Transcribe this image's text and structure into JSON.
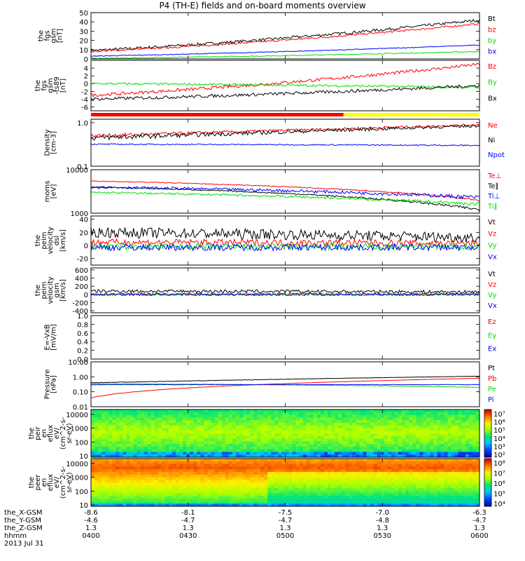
{
  "title": "P4 (TH-E) fields and on-board moments overview",
  "colors": {
    "black": "#000000",
    "red": "#ff0000",
    "green": "#00e000",
    "blue": "#0000ff",
    "yellow": "#ffff00"
  },
  "chart_data": [
    {
      "type": "line",
      "id": "p1",
      "ylabel": [
        "the",
        "fgs",
        "gsm",
        "[nT]"
      ],
      "yticks": [
        "0",
        "10",
        "20",
        "30",
        "40",
        "50"
      ],
      "ylim": [
        0,
        50
      ],
      "series": [
        {
          "name": "Bt",
          "color": "black",
          "start": 9,
          "end": 42,
          "noise": 1.5
        },
        {
          "name": "bz",
          "color": "red",
          "start": 8,
          "end": 38,
          "noise": 1.0
        },
        {
          "name": "by",
          "color": "green",
          "start": 0.5,
          "end": 8,
          "noise": 0.5
        },
        {
          "name": "bx",
          "color": "blue",
          "start": 3,
          "end": 15,
          "noise": 0.4
        }
      ]
    },
    {
      "type": "line",
      "id": "p2",
      "ylabel": [
        "the",
        "fgs",
        "gsm",
        "-ts89",
        "[nT]"
      ],
      "yticks": [
        "-6",
        "-4",
        "-2",
        "0",
        "2",
        "4"
      ],
      "ylim": [
        -7,
        6
      ],
      "series": [
        {
          "name": "Bz",
          "color": "red",
          "start": -3,
          "end": 5,
          "noise": 0.4
        },
        {
          "name": "By",
          "color": "green",
          "start": 0,
          "end": -1,
          "noise": 0.3
        },
        {
          "name": "Bx",
          "color": "black",
          "start": -4,
          "end": -0.5,
          "noise": 0.4
        }
      ],
      "bar": {
        "colors": [
          "red",
          "yellow"
        ],
        "split": 0.65
      }
    },
    {
      "type": "line",
      "id": "p3",
      "log": true,
      "ylabel": [
        "Density",
        "[cm-3]"
      ],
      "yticks": [
        "0.1",
        "1.0"
      ],
      "ylim": [
        0.1,
        1.2
      ],
      "series": [
        {
          "name": "Ne",
          "color": "red",
          "start": 0.5,
          "end": 0.9,
          "noise": 0.05
        },
        {
          "name": "Ni",
          "color": "black",
          "start": 0.45,
          "end": 0.85,
          "noise": 0.06
        },
        {
          "name": "Npot",
          "color": "blue",
          "start": 0.32,
          "end": 0.3,
          "noise": 0.01
        }
      ]
    },
    {
      "type": "line",
      "id": "p4",
      "log": true,
      "ylabel": [
        "moms",
        "[eV]"
      ],
      "yticks": [
        "1000",
        "10000"
      ],
      "ylim": [
        1000,
        10000
      ],
      "series": [
        {
          "name": "Te⊥",
          "color": "red",
          "start": 5500,
          "end": 2000,
          "noise": 100
        },
        {
          "name": "Te∥",
          "color": "black",
          "start": 4000,
          "end": 1200,
          "noise": 100
        },
        {
          "name": "Ti⊥",
          "color": "blue",
          "start": 4000,
          "end": 2300,
          "noise": 250
        },
        {
          "name": "Ti∥",
          "color": "green",
          "start": 3000,
          "end": 1600,
          "noise": 150
        }
      ]
    },
    {
      "type": "line",
      "id": "p5",
      "ylabel": [
        "the",
        "peim",
        "velocity",
        "dsl",
        "[km/s]"
      ],
      "yticks": [
        "-20",
        "0",
        "20",
        "40"
      ],
      "ylim": [
        -30,
        45
      ],
      "series": [
        {
          "name": "Vt",
          "color": "black",
          "start": 20,
          "end": 12,
          "noise": 8
        },
        {
          "name": "Vz",
          "color": "red",
          "start": 5,
          "end": 3,
          "noise": 5
        },
        {
          "name": "Vy",
          "color": "green",
          "start": -2,
          "end": -2,
          "noise": 5
        },
        {
          "name": "Vx",
          "color": "blue",
          "start": -3,
          "end": -3,
          "noise": 5
        }
      ]
    },
    {
      "type": "line",
      "id": "p6",
      "ylabel": [
        "the",
        "peim",
        "velocity",
        "gsm",
        "[km/s]"
      ],
      "yticks": [
        "-400",
        "-200",
        "0",
        "200",
        "400",
        "600"
      ],
      "ylim": [
        -450,
        650
      ],
      "series": [
        {
          "name": "Vt",
          "color": "black",
          "start": 80,
          "end": 60,
          "noise": 40
        },
        {
          "name": "Vz",
          "color": "red",
          "start": 0,
          "end": 0,
          "noise": 30
        },
        {
          "name": "Vy",
          "color": "green",
          "start": 0,
          "end": 0,
          "noise": 30
        },
        {
          "name": "Vx",
          "color": "blue",
          "start": 0,
          "end": 0,
          "noise": 30
        }
      ]
    },
    {
      "type": "line",
      "id": "p7",
      "ylabel": [
        "E=-VxB",
        "[mV/m]"
      ],
      "yticks": [
        "0.0",
        "0.2",
        "0.4",
        "0.6",
        "0.8",
        "1.0"
      ],
      "ylim": [
        0,
        1
      ],
      "series": [
        {
          "name": "Ez",
          "color": "red"
        },
        {
          "name": "Ey",
          "color": "green"
        },
        {
          "name": "Ex",
          "color": "blue"
        }
      ]
    },
    {
      "type": "line",
      "id": "p8",
      "log": true,
      "ylabel": [
        "Pressure",
        "[nPa]"
      ],
      "yticks": [
        "0.01",
        "0.10",
        "1.00",
        "10.00"
      ],
      "ylim": [
        0.01,
        10
      ],
      "series": [
        {
          "name": "Pt",
          "color": "black",
          "start": 0.4,
          "end": 1.1,
          "noise": 0.02
        },
        {
          "name": "Pb",
          "color": "red",
          "start": 0.04,
          "end": 0.8,
          "noise": 0.003
        },
        {
          "name": "Pe",
          "color": "green",
          "start": 0.35,
          "end": 0.2,
          "noise": 0.01
        },
        {
          "name": "Pi",
          "color": "blue",
          "start": 0.3,
          "end": 0.3,
          "noise": 0.01
        }
      ]
    },
    {
      "type": "heatmap",
      "id": "p9",
      "ylabel": [
        "the",
        "peir",
        "en",
        "eflux",
        "eV/",
        "(cm^2-s-",
        "sr-eV)"
      ],
      "yticks": [
        "10",
        "100",
        "1000",
        "10000"
      ],
      "colorbar_ticks": [
        "10²",
        "10³",
        "10⁴",
        "10⁵",
        "10⁶",
        "10⁷"
      ]
    },
    {
      "type": "heatmap",
      "id": "p10",
      "ylabel": [
        "the",
        "peer",
        "en",
        "eflux",
        "eV/",
        "(cm^2-s-",
        "sr-eV)"
      ],
      "yticks": [
        "10",
        "100",
        "1000",
        "10000"
      ],
      "colorbar_ticks": [
        "10⁴",
        "10⁵",
        "10⁶",
        "10⁷",
        "10⁸"
      ]
    }
  ],
  "xaxis": {
    "rows": [
      {
        "label": "the_X-GSM",
        "values": [
          "-8.6",
          "-8.1",
          "-7.5",
          "-7.0",
          "-6.3"
        ]
      },
      {
        "label": "the_Y-GSM",
        "values": [
          "-4.6",
          "-4.7",
          "-4.7",
          "-4.8",
          "-4.7"
        ]
      },
      {
        "label": "the_Z-GSM",
        "values": [
          "1.3",
          "1.3",
          "1.3",
          "1.3",
          "1.3"
        ]
      },
      {
        "label": "hhmm",
        "values": [
          "0400",
          "0430",
          "0500",
          "0530",
          "0600"
        ]
      }
    ],
    "date": "2013 Jul 31"
  }
}
